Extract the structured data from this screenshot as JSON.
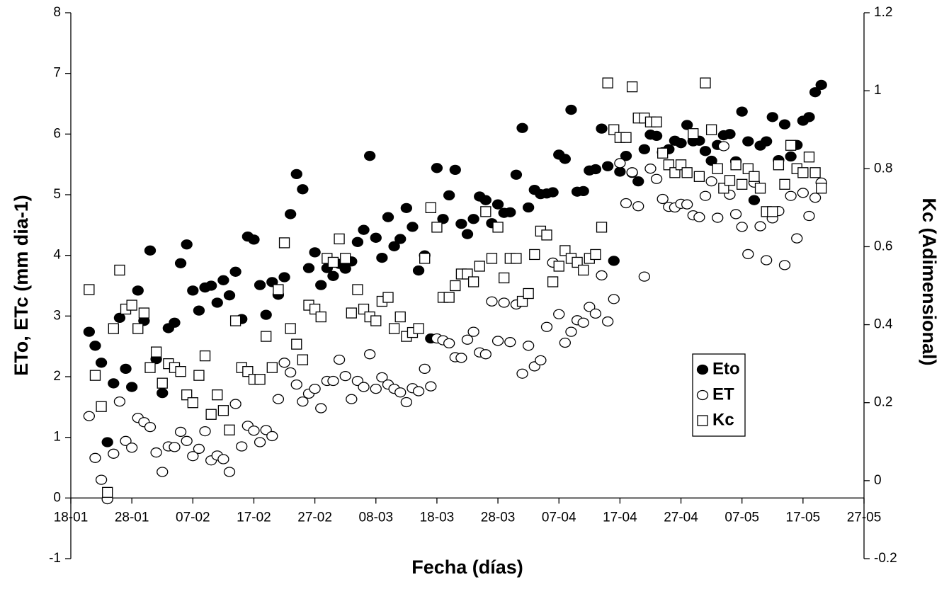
{
  "chart_data": {
    "type": "scatter",
    "x_label": "Fecha (días)",
    "y_label": "ETo, ETc (mm dia-1)",
    "y2_label": "Kc (Adimensional)",
    "xlim": [
      0,
      130
    ],
    "xticks": [
      {
        "value": 0,
        "label": "18-01"
      },
      {
        "value": 10,
        "label": "28-01"
      },
      {
        "value": 20,
        "label": "07-02"
      },
      {
        "value": 30,
        "label": "17-02"
      },
      {
        "value": 40,
        "label": "27-02"
      },
      {
        "value": 50,
        "label": "08-03"
      },
      {
        "value": 60,
        "label": "18-03"
      },
      {
        "value": 70,
        "label": "28-03"
      },
      {
        "value": 80,
        "label": "07-04"
      },
      {
        "value": 90,
        "label": "17-04"
      },
      {
        "value": 100,
        "label": "27-04"
      },
      {
        "value": 110,
        "label": "07-05"
      },
      {
        "value": 120,
        "label": "17-05"
      },
      {
        "value": 130,
        "label": "27-05"
      }
    ],
    "ylim": [
      -1,
      8
    ],
    "yticks": [
      -1,
      0,
      1,
      2,
      3,
      4,
      5,
      6,
      7,
      8
    ],
    "y2lim": [
      -0.2,
      1.2
    ],
    "y2ticks": [
      -0.2,
      0,
      0.2,
      0.4,
      0.6,
      0.8,
      1,
      1.2
    ],
    "legend": "lower right",
    "x": [
      3,
      4,
      5,
      6,
      7,
      8,
      9,
      10,
      11,
      12,
      13,
      14,
      15,
      16,
      17,
      18,
      19,
      20,
      21,
      22,
      23,
      24,
      25,
      26,
      27,
      28,
      29,
      30,
      31,
      32,
      33,
      34,
      35,
      36,
      37,
      38,
      39,
      40,
      41,
      42,
      43,
      44,
      45,
      46,
      47,
      48,
      49,
      50,
      51,
      52,
      53,
      54,
      55,
      56,
      57,
      58,
      59,
      60,
      61,
      62,
      63,
      64,
      65,
      66,
      67,
      68,
      69,
      70,
      71,
      72,
      73,
      74,
      75,
      76,
      77,
      78,
      79,
      80,
      81,
      82,
      83,
      84,
      85,
      86,
      87,
      88,
      89,
      90,
      91,
      92,
      93,
      94,
      95,
      96,
      97,
      98,
      99,
      100,
      101,
      102,
      103,
      104,
      105,
      106,
      107,
      108,
      109,
      110,
      111,
      112,
      113,
      114,
      115,
      116,
      117,
      118,
      119,
      120,
      121,
      122,
      123
    ],
    "series": [
      {
        "name": "Eto",
        "color": "#000000",
        "marker": "circle-filled",
        "values": [
          2.74,
          2.51,
          2.23,
          0.92,
          1.89,
          2.97,
          2.13,
          1.83,
          3.42,
          2.92,
          4.08,
          2.29,
          1.73,
          2.8,
          2.89,
          3.87,
          4.18,
          3.42,
          3.09,
          3.47,
          3.5,
          3.22,
          3.59,
          3.34,
          3.73,
          2.95,
          4.31,
          4.26,
          3.51,
          3.02,
          3.56,
          3.35,
          3.64,
          4.68,
          5.34,
          5.09,
          3.79,
          4.05,
          3.51,
          3.79,
          3.66,
          3.86,
          3.78,
          3.9,
          4.22,
          4.42,
          5.64,
          4.29,
          3.96,
          4.63,
          4.15,
          4.27,
          4.78,
          4.47,
          3.75,
          4.0,
          2.63,
          5.44,
          4.6,
          4.99,
          5.41,
          4.52,
          4.35,
          4.6,
          4.97,
          4.91,
          4.53,
          4.84,
          4.7,
          4.71,
          5.33,
          6.1,
          4.79,
          5.08,
          5.01,
          5.02,
          5.04,
          5.66,
          5.59,
          6.4,
          5.05,
          5.06,
          5.4,
          5.42,
          6.09,
          5.47,
          3.91,
          5.38,
          5.64,
          5.36,
          5.22,
          5.75,
          5.99,
          5.97,
          5.7,
          5.75,
          5.89,
          5.85,
          6.15,
          5.88,
          5.89,
          5.72,
          5.56,
          5.82,
          5.98,
          6.0,
          5.55,
          6.37,
          5.88,
          4.91,
          5.81,
          5.88,
          6.28,
          5.57,
          6.16,
          5.63,
          5.82,
          6.22,
          6.28,
          6.69,
          6.81
        ]
      },
      {
        "name": "ET",
        "color": "#000000",
        "marker": "circle-open",
        "values": [
          1.35,
          0.66,
          0.3,
          -0.02,
          0.73,
          1.59,
          0.94,
          0.83,
          1.32,
          1.25,
          1.17,
          0.75,
          0.43,
          0.85,
          0.84,
          1.09,
          0.94,
          0.69,
          0.81,
          1.1,
          0.62,
          0.7,
          0.64,
          0.43,
          1.55,
          0.85,
          1.19,
          1.11,
          0.92,
          1.12,
          1.02,
          1.63,
          2.23,
          2.07,
          1.87,
          1.59,
          1.72,
          1.8,
          1.48,
          1.93,
          1.93,
          2.28,
          2.01,
          1.63,
          1.93,
          1.83,
          2.37,
          1.8,
          1.99,
          1.87,
          1.8,
          1.74,
          1.58,
          1.81,
          1.76,
          2.13,
          1.84,
          2.63,
          2.6,
          2.55,
          2.32,
          2.31,
          2.61,
          2.74,
          2.4,
          2.37,
          3.24,
          2.59,
          3.22,
          2.57,
          3.19,
          2.05,
          2.51,
          2.17,
          2.27,
          2.82,
          3.88,
          3.03,
          2.56,
          2.74,
          2.93,
          2.89,
          3.15,
          3.04,
          3.67,
          2.91,
          3.28,
          5.52,
          4.86,
          5.37,
          4.81,
          3.65,
          5.43,
          5.26,
          4.93,
          4.8,
          4.79,
          4.85,
          4.84,
          4.66,
          4.63,
          4.98,
          5.22,
          4.62,
          5.8,
          5.0,
          4.68,
          4.47,
          4.02,
          5.2,
          4.48,
          3.92,
          4.61,
          4.73,
          3.84,
          4.98,
          4.28,
          5.03,
          4.65,
          4.95,
          5.2
        ]
      },
      {
        "name": "Kc",
        "color": "#000000",
        "marker": "square-open",
        "axis": "y2",
        "values": [
          0.49,
          0.27,
          0.19,
          -0.03,
          0.39,
          0.54,
          0.44,
          0.45,
          0.39,
          0.43,
          0.29,
          0.33,
          0.25,
          0.3,
          0.29,
          0.28,
          0.22,
          0.2,
          0.27,
          0.32,
          0.17,
          0.22,
          0.18,
          0.13,
          0.41,
          0.29,
          0.28,
          0.26,
          0.26,
          0.37,
          0.29,
          0.49,
          0.61,
          0.39,
          0.35,
          0.31,
          0.45,
          0.44,
          0.42,
          0.57,
          0.56,
          0.62,
          0.57,
          0.43,
          0.49,
          0.44,
          0.42,
          0.41,
          0.46,
          0.47,
          0.39,
          0.42,
          0.37,
          0.38,
          0.39,
          0.57,
          0.7,
          0.65,
          0.47,
          0.47,
          0.5,
          0.53,
          0.53,
          0.51,
          0.55,
          0.69,
          0.57,
          0.65,
          0.52,
          0.57,
          0.57,
          0.46,
          0.48,
          0.58,
          0.64,
          0.63,
          0.51,
          0.55,
          0.59,
          0.57,
          0.56,
          0.54,
          0.57,
          0.58,
          0.65,
          1.02,
          0.9,
          0.88,
          0.88,
          1.01,
          0.93,
          0.93,
          0.92,
          0.92,
          0.84,
          0.81,
          0.79,
          0.81,
          0.79,
          0.89,
          0.78,
          1.02,
          0.9,
          0.8,
          0.75,
          0.77,
          0.81,
          0.76,
          0.8,
          0.78,
          0.75,
          0.69,
          0.69,
          0.81,
          0.76,
          0.86,
          0.8,
          0.79,
          0.83,
          0.79,
          0.75
        ]
      }
    ]
  }
}
